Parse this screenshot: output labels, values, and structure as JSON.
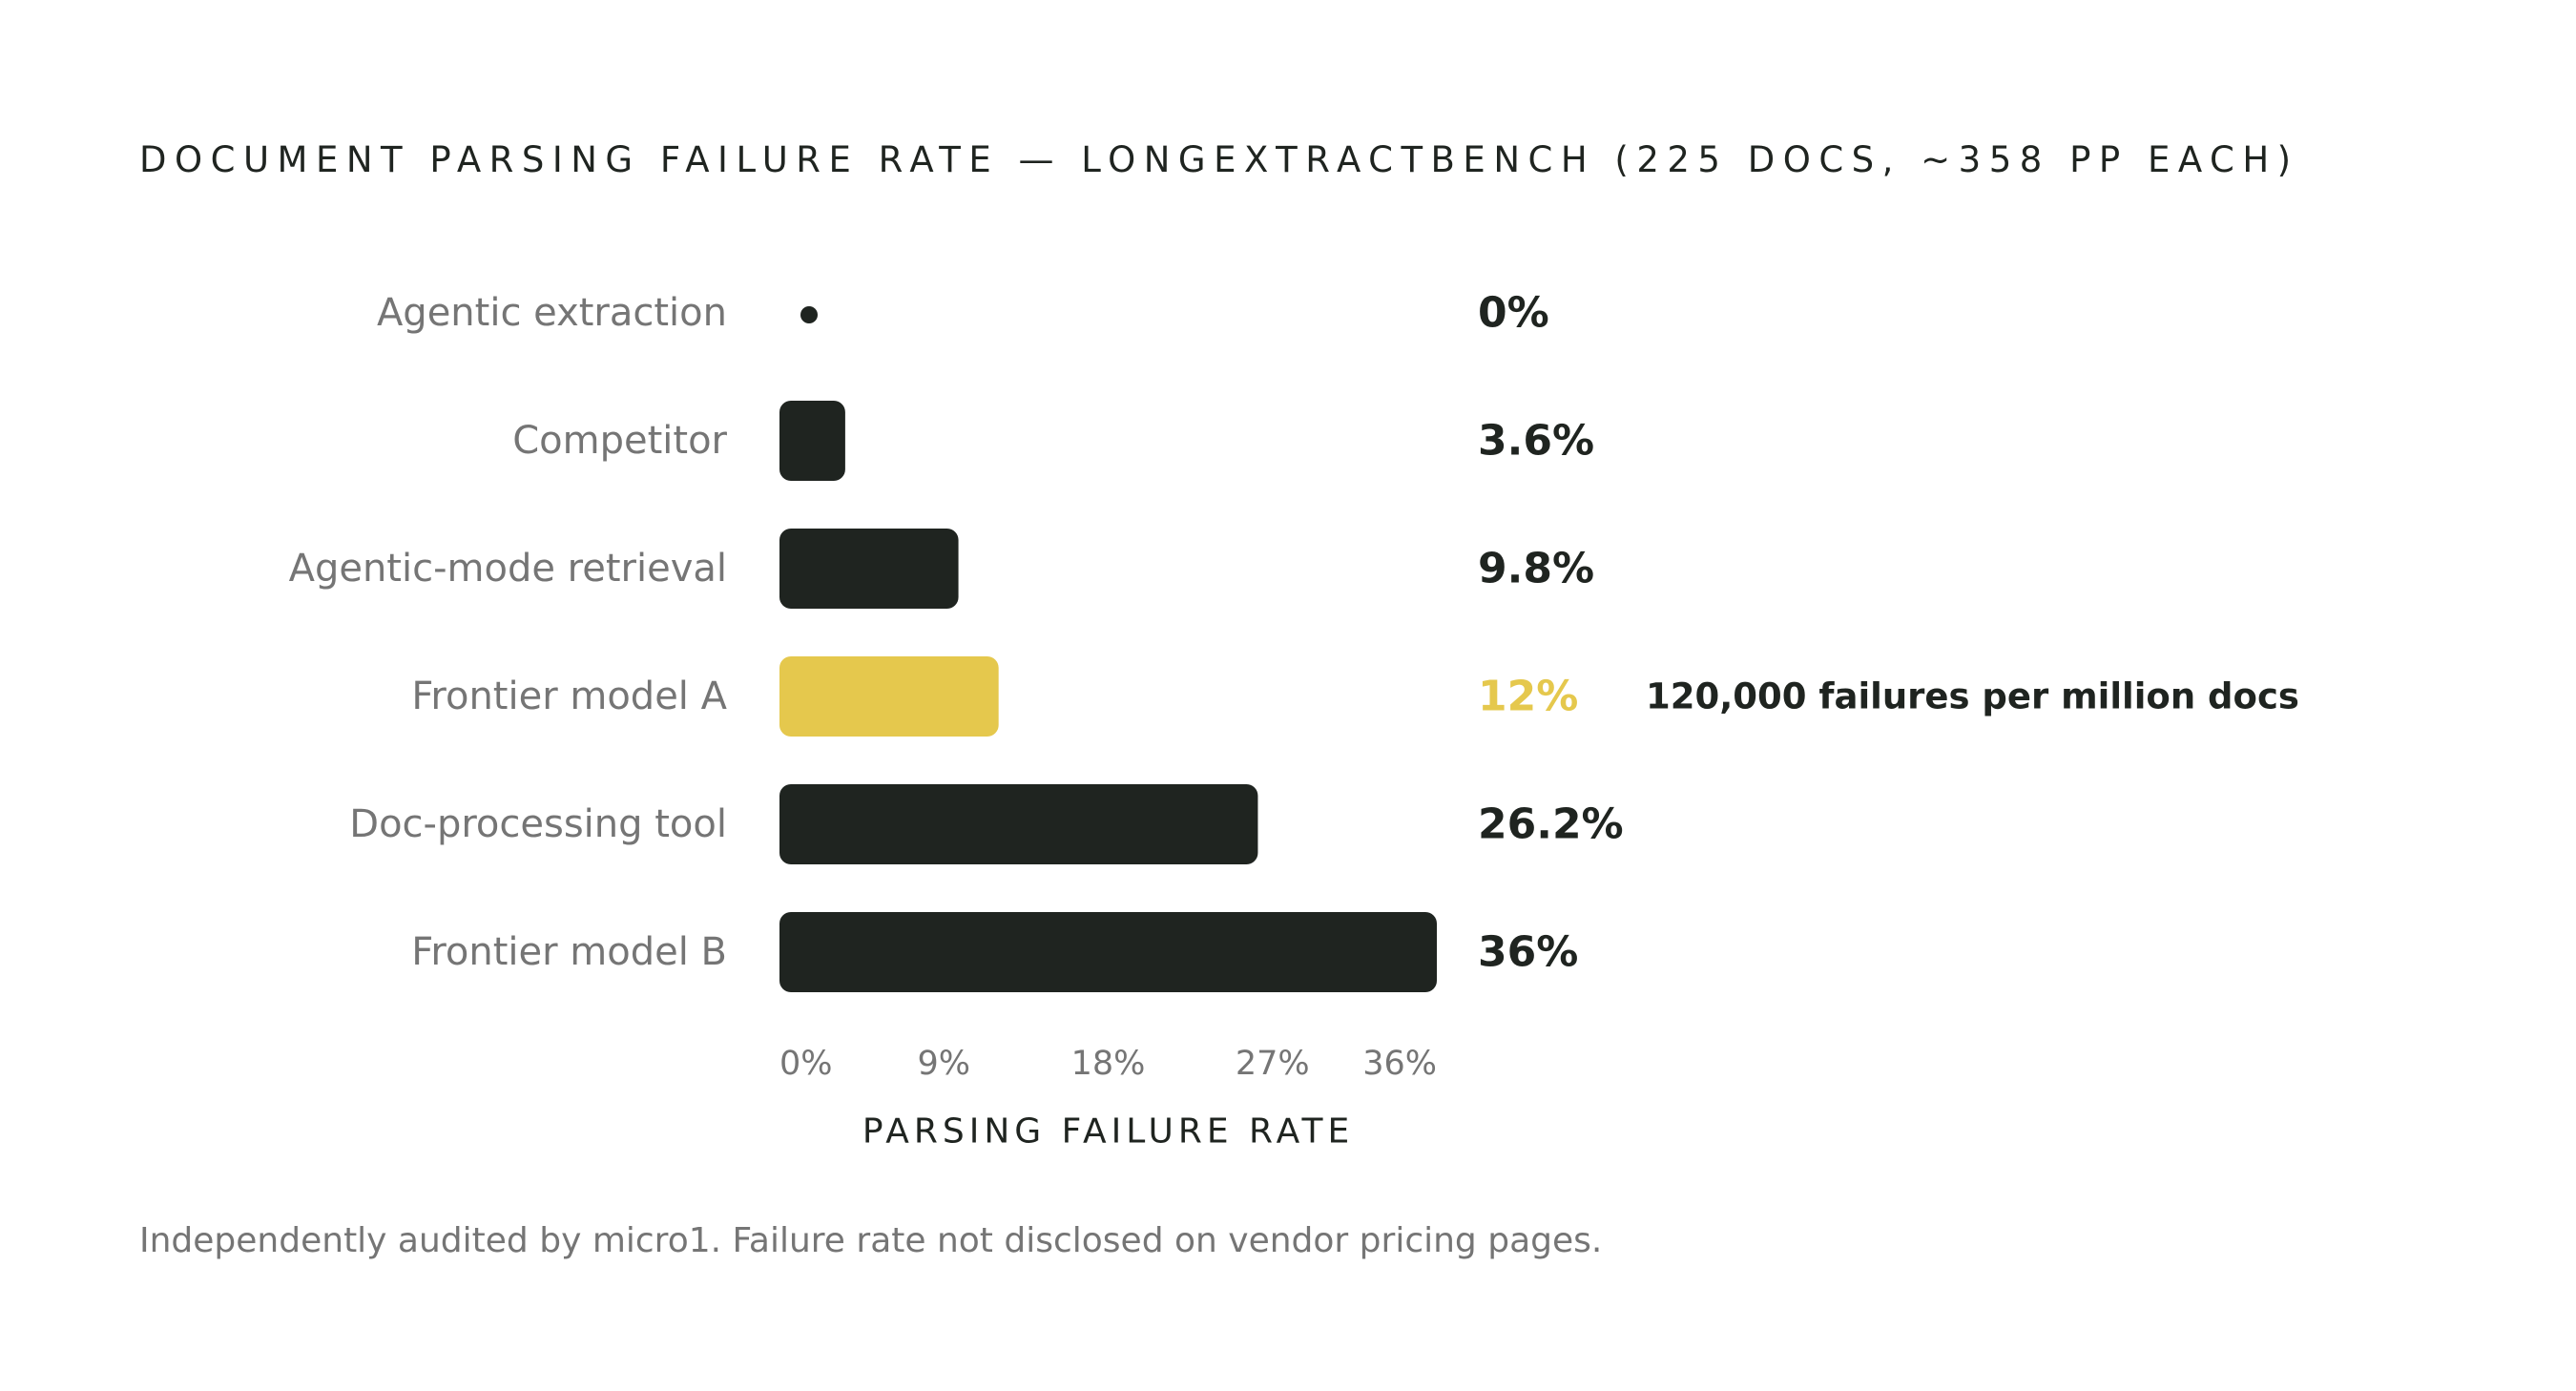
{
  "colors": {
    "bar": "#1f2420",
    "highlight": "#e5c84d",
    "category_text": "#757575",
    "value_text": "#1f2420",
    "note_text": "#1f2420",
    "axis_text": "#757575",
    "axis_label": "#1f2420"
  },
  "chart_data": {
    "type": "bar",
    "orientation": "horizontal",
    "title": "DOCUMENT PARSING FAILURE RATE — LONGEXTRACTBENCH (225 DOCS, ~358 PP EACH)",
    "xlabel": "PARSING FAILURE RATE",
    "xlim": [
      0,
      36
    ],
    "xticks": [
      0,
      9,
      18,
      27,
      36
    ],
    "xtick_labels": [
      "0%",
      "9%",
      "18%",
      "27%",
      "36%"
    ],
    "grid": false,
    "legend": "none",
    "categories": [
      "Agentic extraction",
      "Competitor",
      "Agentic-mode retrieval",
      "Frontier model A",
      "Doc-processing tool",
      "Frontier model B"
    ],
    "values": [
      0,
      3.6,
      9.8,
      12,
      26.2,
      36
    ],
    "value_labels": [
      "0%",
      "3.6%",
      "9.8%",
      "12%",
      "26.2%",
      "36%"
    ],
    "highlight_index": 3,
    "annotations": [
      {
        "category": "Frontier model A",
        "text": "120,000 failures per million docs"
      }
    ]
  },
  "footnote": "Independently audited by micro1. Failure rate not disclosed on vendor pricing pages."
}
